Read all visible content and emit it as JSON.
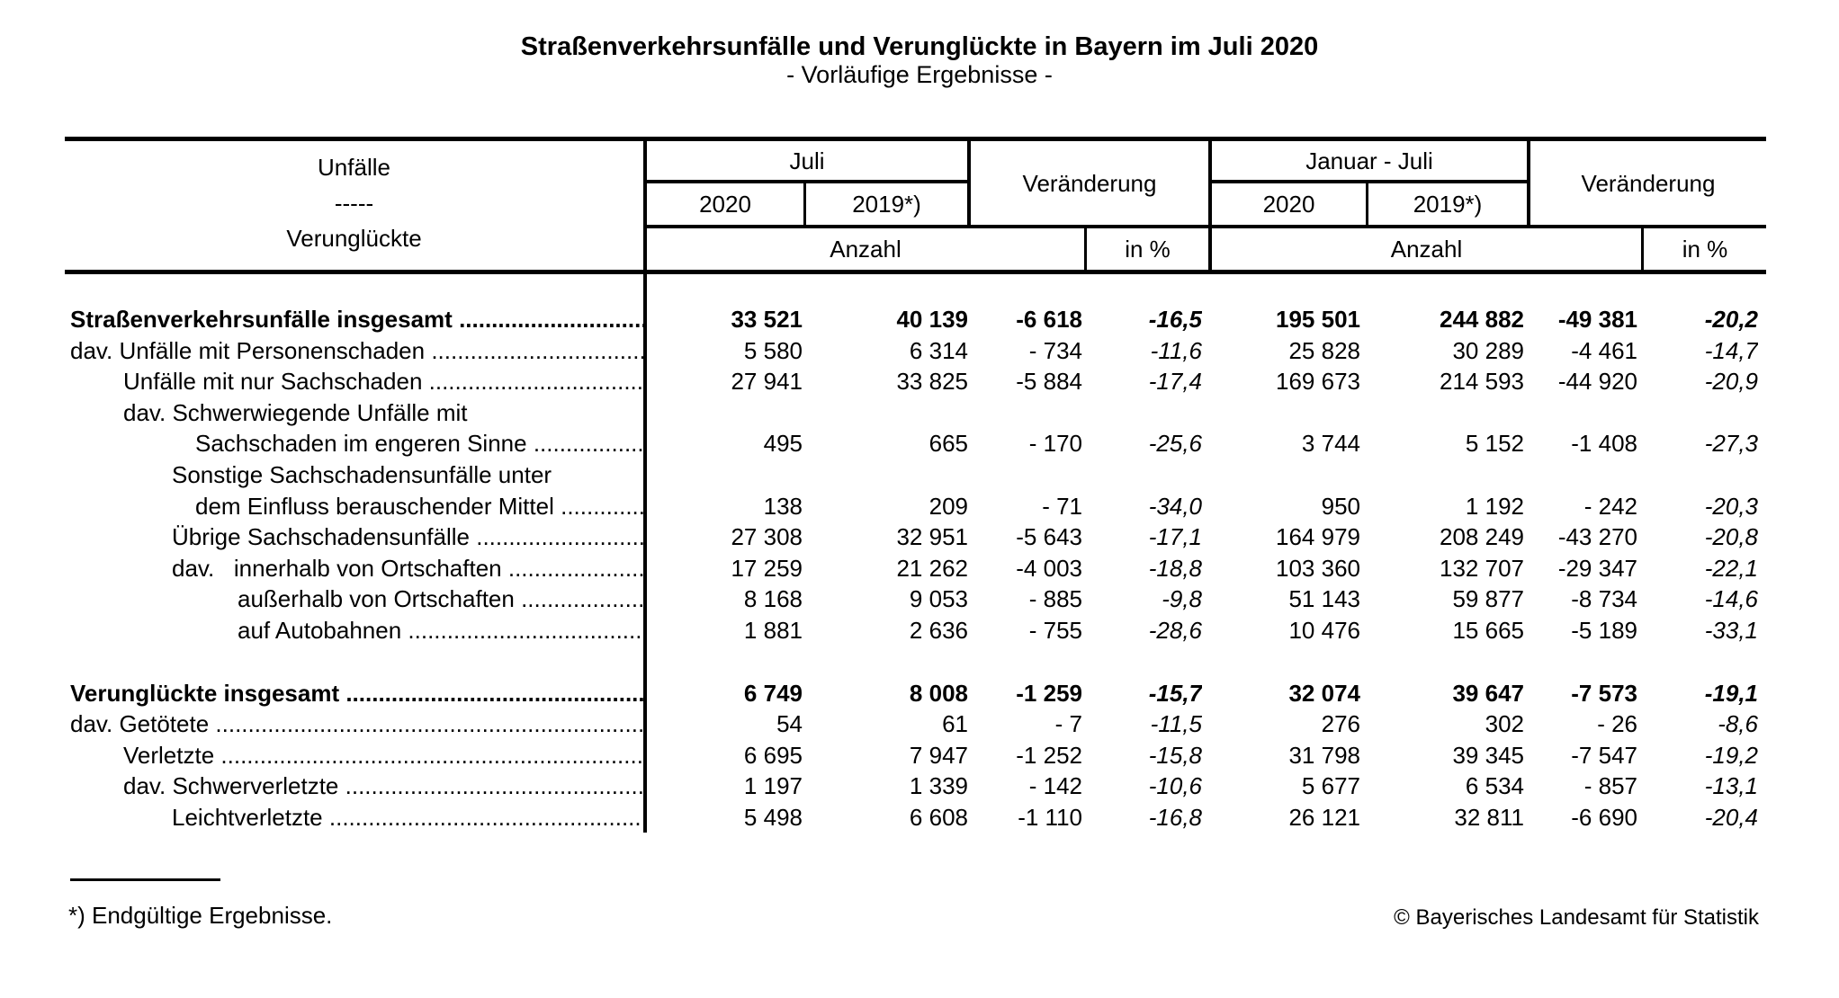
{
  "title": "Straßenverkehrsunfälle und Verunglückte in Bayern im Juli 2020",
  "subtitle": "- Vorläufige Ergebnisse -",
  "table": {
    "stub": {
      "line1": "Unfälle",
      "line2": "-----",
      "line3": "Verunglückte"
    },
    "col_groups": {
      "juli": "Juli",
      "veraenderung1": "Veränderung",
      "januar_juli": "Januar - Juli",
      "veraenderung2": "Veränderung"
    },
    "year_cols": {
      "juli_2020": "2020",
      "juli_2019": "2019*)",
      "janjuli_2020": "2020",
      "janjuli_2019": "2019*)"
    },
    "unit_row": {
      "anzahl1": "Anzahl",
      "in_pct1": "in %",
      "anzahl2": "Anzahl",
      "in_pct2": "in %"
    },
    "column_keys": [
      "juli_2020",
      "juli_2019",
      "delta_juli",
      "delta_juli_pct",
      "janjuli_2020",
      "janjuli_2019",
      "delta_janjuli",
      "delta_janjuli_pct"
    ],
    "leader_dots": "....................................................................................................",
    "rows": [
      {
        "label": "Straßenverkehrsunfälle insgesamt ",
        "indent": 0,
        "bold": true,
        "leader": true,
        "gap_before": false,
        "values": [
          "33 521",
          "40 139",
          "-6 618",
          "-16,5",
          "195 501",
          "244 882",
          "-49 381",
          "-20,2"
        ]
      },
      {
        "label": "dav. Unfälle mit Personenschaden ",
        "indent": 0,
        "bold": false,
        "leader": true,
        "gap_before": false,
        "values": [
          "5 580",
          "6 314",
          "- 734",
          "-11,6",
          "25 828",
          "30 289",
          "-4 461",
          "-14,7"
        ]
      },
      {
        "label": "Unfälle mit nur Sachschaden ",
        "indent": 1,
        "bold": false,
        "leader": true,
        "gap_before": false,
        "values": [
          "27 941",
          "33 825",
          "-5 884",
          "-17,4",
          "169 673",
          "214 593",
          "-44 920",
          "-20,9"
        ]
      },
      {
        "label": "dav. Schwerwiegende Unfälle mit",
        "indent": 1,
        "bold": false,
        "leader": false,
        "gap_before": false,
        "values": [
          "",
          "",
          "",
          "",
          "",
          "",
          "",
          ""
        ]
      },
      {
        "label": "Sachschaden im engeren Sinne ",
        "indent": 3,
        "bold": false,
        "leader": true,
        "gap_before": false,
        "values": [
          "495",
          "665",
          "- 170",
          "-25,6",
          "3 744",
          "5 152",
          "-1 408",
          "-27,3"
        ]
      },
      {
        "label": "Sonstige Sachschadensunfälle unter",
        "indent": 2,
        "bold": false,
        "leader": false,
        "gap_before": false,
        "values": [
          "",
          "",
          "",
          "",
          "",
          "",
          "",
          ""
        ]
      },
      {
        "label": "dem Einfluss berauschender Mittel ",
        "indent": 3,
        "bold": false,
        "leader": true,
        "gap_before": false,
        "values": [
          "138",
          "209",
          "- 71",
          "-34,0",
          "950",
          "1 192",
          "- 242",
          "-20,3"
        ]
      },
      {
        "label": "Übrige Sachschadensunfälle ",
        "indent": 2,
        "bold": false,
        "leader": true,
        "gap_before": false,
        "values": [
          "27 308",
          "32 951",
          "-5 643",
          "-17,1",
          "164 979",
          "208 249",
          "-43 270",
          "-20,8"
        ]
      },
      {
        "label": "dav.   innerhalb von Ortschaften ",
        "indent": 2,
        "bold": false,
        "leader": true,
        "gap_before": false,
        "values": [
          "17 259",
          "21 262",
          "-4 003",
          "-18,8",
          "103 360",
          "132 707",
          "-29 347",
          "-22,1"
        ]
      },
      {
        "label": "außerhalb von Ortschaften ",
        "indent": 4,
        "bold": false,
        "leader": true,
        "gap_before": false,
        "values": [
          "8 168",
          "9 053",
          "- 885",
          "-9,8",
          "51 143",
          "59 877",
          "-8 734",
          "-14,6"
        ]
      },
      {
        "label": "auf Autobahnen ",
        "indent": 4,
        "bold": false,
        "leader": true,
        "gap_before": false,
        "values": [
          "1 881",
          "2 636",
          "- 755",
          "-28,6",
          "10 476",
          "15 665",
          "-5 189",
          "-33,1"
        ]
      },
      {
        "label": "Verunglückte insgesamt ",
        "indent": 0,
        "bold": true,
        "leader": true,
        "gap_before": true,
        "values": [
          "6 749",
          "8 008",
          "-1 259",
          "-15,7",
          "32 074",
          "39 647",
          "-7 573",
          "-19,1"
        ]
      },
      {
        "label": "dav. Getötete ",
        "indent": 0,
        "bold": false,
        "leader": true,
        "gap_before": false,
        "values": [
          "54",
          "61",
          "- 7",
          "-11,5",
          "276",
          "302",
          "- 26",
          "-8,6"
        ]
      },
      {
        "label": "Verletzte ",
        "indent": 1,
        "bold": false,
        "leader": true,
        "gap_before": false,
        "values": [
          "6 695",
          "7 947",
          "-1 252",
          "-15,8",
          "31 798",
          "39 345",
          "-7 547",
          "-19,2"
        ]
      },
      {
        "label": "dav. Schwerverletzte ",
        "indent": 1,
        "bold": false,
        "leader": true,
        "gap_before": false,
        "values": [
          "1 197",
          "1 339",
          "- 142",
          "-10,6",
          "5 677",
          "6 534",
          "- 857",
          "-13,1"
        ]
      },
      {
        "label": "Leichtverletzte ",
        "indent": 2,
        "bold": false,
        "leader": true,
        "gap_before": false,
        "values": [
          "5 498",
          "6 608",
          "-1 110",
          "-16,8",
          "26 121",
          "32 811",
          "-6 690",
          "-20,4"
        ]
      }
    ]
  },
  "footnote": "*) Endgültige Ergebnisse.",
  "copyright": "© Bayerisches Landesamt für Statistik"
}
